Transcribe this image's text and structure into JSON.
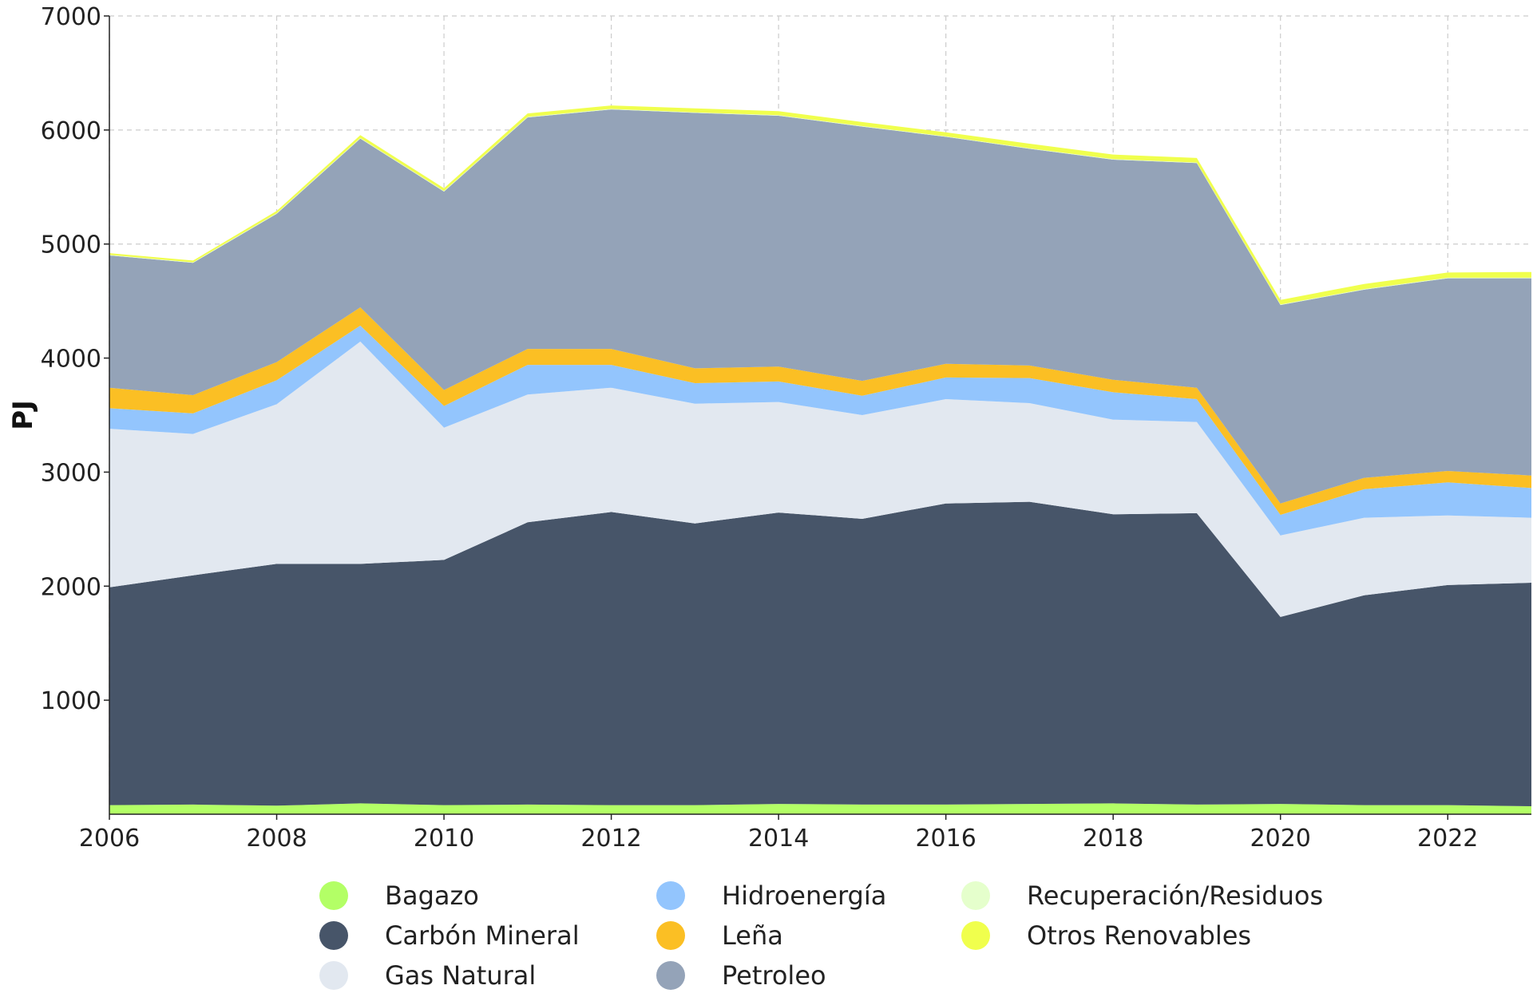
{
  "chart_data": {
    "type": "area",
    "stacked": true,
    "ylabel": "PJ",
    "xlabel": "",
    "title": "",
    "x": [
      2006,
      2007,
      2008,
      2009,
      2010,
      2011,
      2012,
      2013,
      2014,
      2015,
      2016,
      2017,
      2018,
      2019,
      2020,
      2021,
      2022,
      2023
    ],
    "xlim": [
      2006,
      2023
    ],
    "ylim": [
      0,
      7000
    ],
    "x_ticks": [
      2006,
      2008,
      2010,
      2012,
      2014,
      2016,
      2018,
      2020,
      2022
    ],
    "y_ticks": [
      1000,
      2000,
      3000,
      4000,
      5000,
      6000,
      7000
    ],
    "grid": true,
    "legend_position": "bottom",
    "series": [
      {
        "name": "Bagazo",
        "color": "#b3ff66",
        "values": [
          80,
          85,
          75,
          95,
          80,
          85,
          80,
          80,
          90,
          85,
          85,
          90,
          95,
          85,
          90,
          80,
          80,
          70
        ]
      },
      {
        "name": "Carbón Mineral",
        "color": "#475569",
        "values": [
          1910,
          2010,
          2120,
          2100,
          2150,
          2475,
          2570,
          2470,
          2555,
          2505,
          2640,
          2650,
          2535,
          2555,
          1640,
          1840,
          1930,
          1960
        ]
      },
      {
        "name": "Gas Natural",
        "color": "#e2e8f0",
        "values": [
          1390,
          1240,
          1400,
          1950,
          1160,
          1120,
          1090,
          1050,
          970,
          910,
          915,
          865,
          830,
          800,
          715,
          680,
          610,
          570
        ]
      },
      {
        "name": "Hidroenergía",
        "color": "#93c5fd",
        "values": [
          180,
          180,
          210,
          140,
          190,
          260,
          200,
          180,
          180,
          170,
          190,
          220,
          240,
          200,
          180,
          250,
          290,
          260
        ]
      },
      {
        "name": "Leña",
        "color": "#fbbf24",
        "values": [
          180,
          160,
          160,
          160,
          140,
          140,
          140,
          130,
          130,
          130,
          120,
          110,
          110,
          100,
          100,
          100,
          100,
          110
        ]
      },
      {
        "name": "Petroleo",
        "color": "#94a3b8",
        "values": [
          1160,
          1160,
          1300,
          1480,
          1740,
          2030,
          2100,
          2240,
          2200,
          2230,
          1990,
          1900,
          1930,
          1970,
          1740,
          1650,
          1690,
          1730
        ]
      },
      {
        "name": "Recuperación/Residuos",
        "color": "#e5ffcc",
        "values": [
          5,
          5,
          5,
          5,
          5,
          5,
          5,
          5,
          5,
          5,
          5,
          5,
          5,
          5,
          5,
          5,
          5,
          5
        ]
      },
      {
        "name": "Otros Renovables",
        "color": "#f0ff4d",
        "values": [
          15,
          15,
          20,
          25,
          25,
          30,
          30,
          35,
          35,
          35,
          35,
          40,
          40,
          40,
          40,
          45,
          45,
          50
        ]
      }
    ]
  }
}
